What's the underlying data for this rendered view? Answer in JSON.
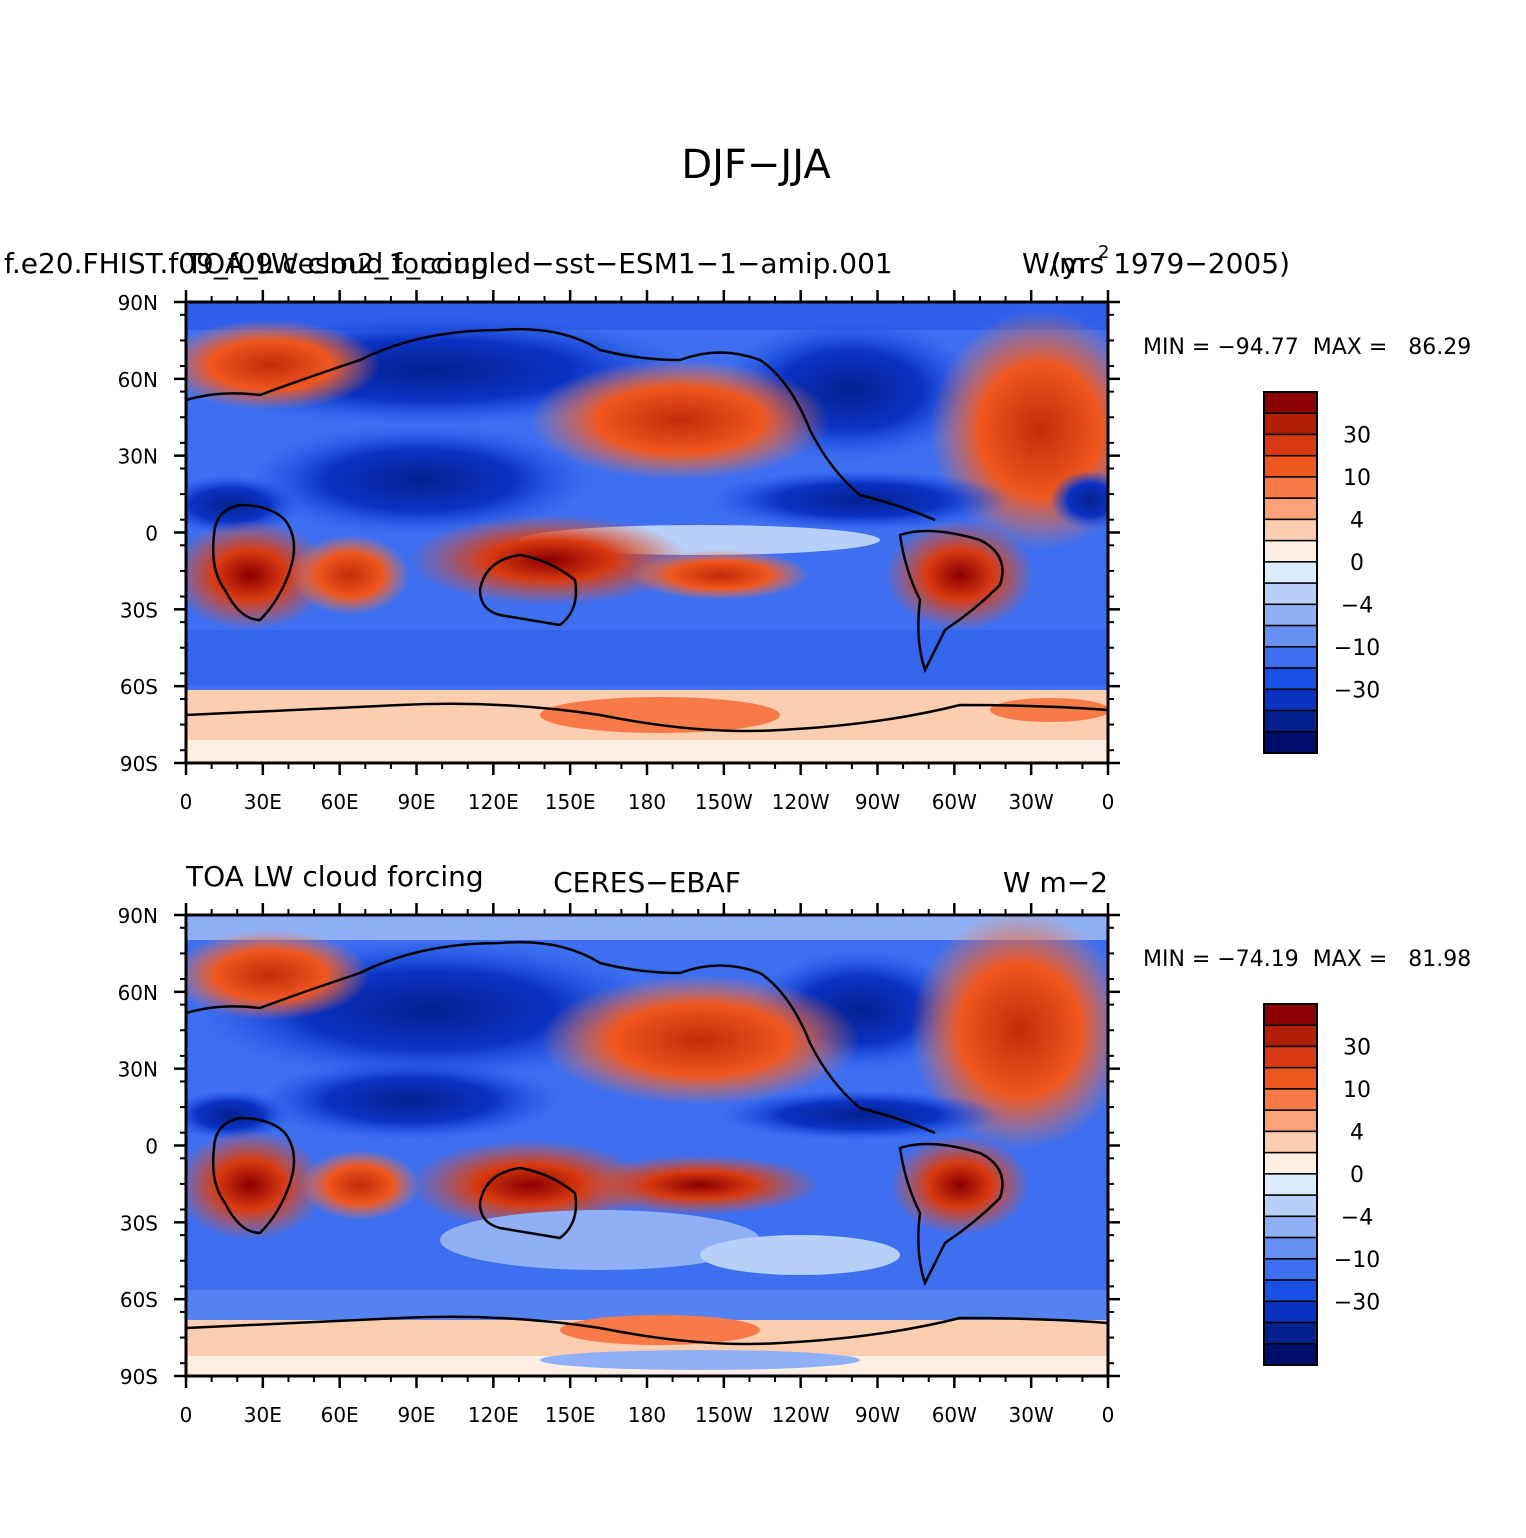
{
  "figure": {
    "title": "DJF−JJA"
  },
  "panels": [
    {
      "left_title": "f.e20.FHIST.f09_f09.cesm2_1_coupled−sst−ESM1−1−amip.001",
      "left_title_overlay": "TOA_LW cloud forcing",
      "center_title": "(yrs 1979−2005)",
      "right_title": "W/m",
      "right_title_sup": "2",
      "min_max": "MIN = −94.77  MAX =   86.29",
      "min": -94.77,
      "max": 86.29
    },
    {
      "left_title": "TOA LW cloud forcing",
      "center_title": "CERES−EBAF",
      "right_title": "W m−2",
      "min_max": "MIN = −74.19  MAX =   81.98",
      "min": -74.19,
      "max": 81.98
    }
  ],
  "lat_ticks": [
    "90N",
    "60N",
    "30N",
    "0",
    "30S",
    "60S",
    "90S"
  ],
  "lon_ticks": [
    "0",
    "30E",
    "60E",
    "90E",
    "120E",
    "150E",
    "180",
    "150W",
    "120W",
    "90W",
    "60W",
    "30W",
    "0"
  ],
  "colorbar": {
    "labels": [
      "30",
      "10",
      "4",
      "0",
      "−4",
      "−10",
      "−30"
    ],
    "colors": [
      "#8b0000",
      "#b31e06",
      "#d73a10",
      "#f0571f",
      "#f87a48",
      "#fca278",
      "#fdcdb0",
      "#fdeee3",
      "#dcebfb",
      "#b6d0fa",
      "#8fb0f6",
      "#6690f2",
      "#3e6ff0",
      "#1a4fe6",
      "#0a33c2",
      "#03208f",
      "#000e6b"
    ]
  }
}
